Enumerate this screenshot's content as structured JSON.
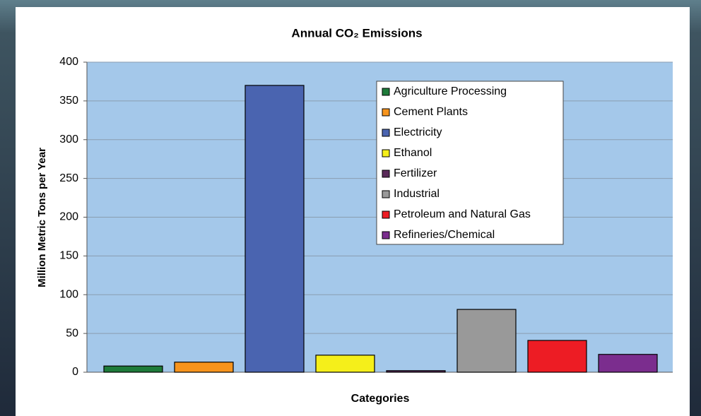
{
  "chart_data": {
    "type": "bar",
    "title": "Annual CO₂ Emissions",
    "y_label": "Million Metric Tons per Year",
    "x_label": "Categories",
    "categories": [
      null
    ],
    "series": [
      {
        "name": "Agriculture Processing",
        "color": "#1e7b3a",
        "values": [
          8
        ]
      },
      {
        "name": "Cement Plants",
        "color": "#f7941d",
        "values": [
          13
        ]
      },
      {
        "name": "Electricity",
        "color": "#4a64b0",
        "values": [
          370
        ]
      },
      {
        "name": "Ethanol",
        "color": "#f5ef1a",
        "values": [
          22
        ]
      },
      {
        "name": "Fertilizer",
        "color": "#5a2a5a",
        "values": [
          2
        ]
      },
      {
        "name": "Industrial",
        "color": "#999999",
        "values": [
          81
        ]
      },
      {
        "name": "Petroleum and Natural Gas",
        "color": "#ed1c24",
        "values": [
          41
        ]
      },
      {
        "name": "Refineries/Chemical",
        "color": "#7b2d8e",
        "values": [
          23
        ]
      }
    ],
    "ylim": [
      0,
      400
    ],
    "yticks": [
      0,
      50,
      100,
      150,
      200,
      250,
      300,
      350,
      400
    ],
    "grid": true,
    "legend": "top-right"
  }
}
